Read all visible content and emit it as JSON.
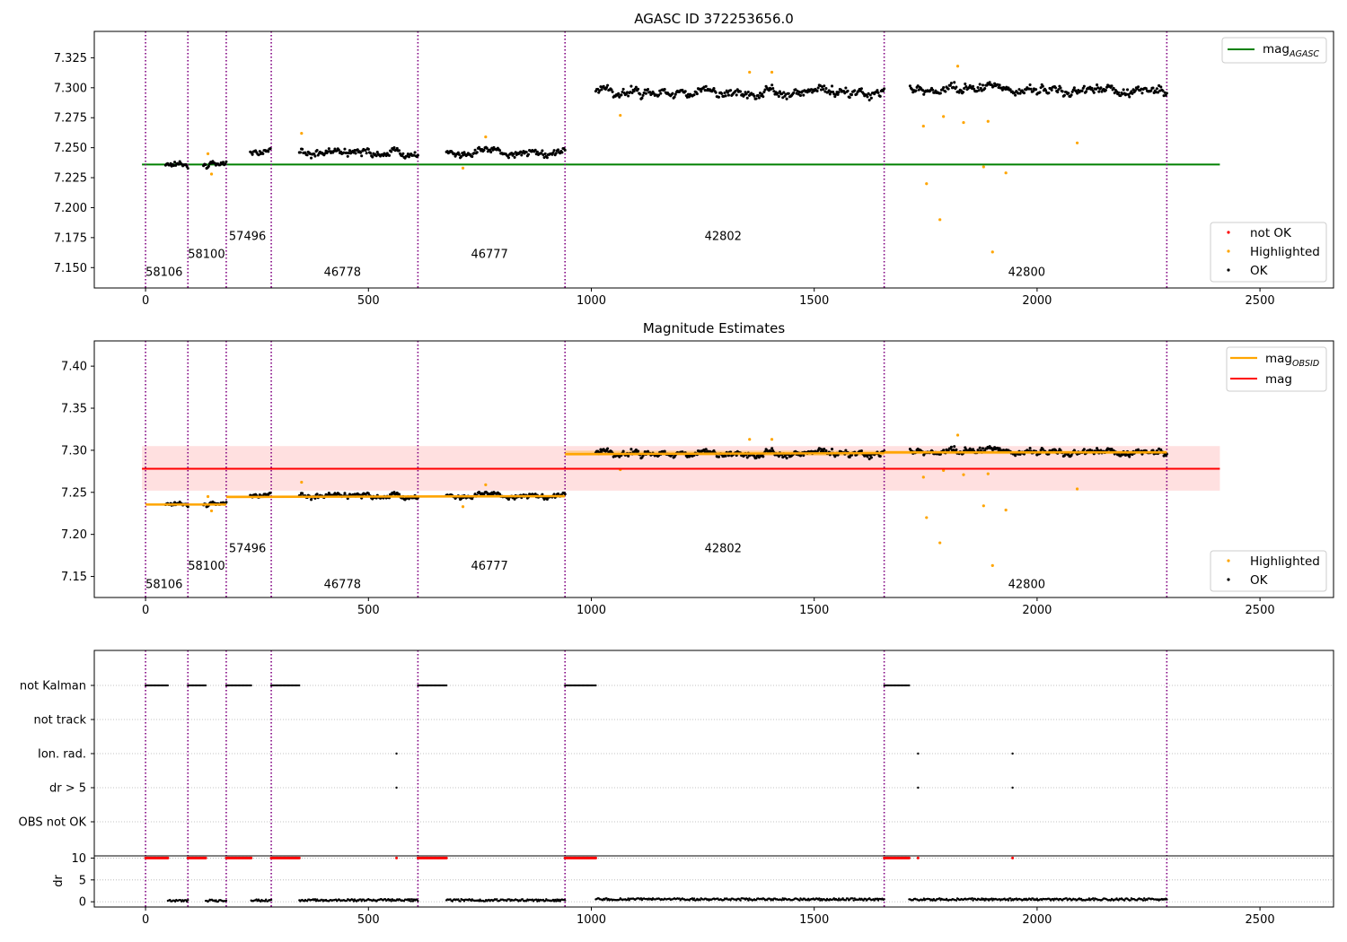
{
  "chart_data": [
    {
      "type": "scatter",
      "title": "AGASC ID 372253656.0",
      "xlim": [
        -115,
        2665
      ],
      "ylim": [
        7.133,
        7.347
      ],
      "xticks": [
        0,
        500,
        1000,
        1500,
        2000,
        2500
      ],
      "yticks": [
        7.15,
        7.175,
        7.2,
        7.225,
        7.25,
        7.275,
        7.3,
        7.325
      ],
      "ytick_labels": [
        "7.150",
        "7.175",
        "7.200",
        "7.225",
        "7.250",
        "7.275",
        "7.300",
        "7.325"
      ],
      "obs_boundaries": [
        0,
        95,
        181,
        282,
        611,
        941,
        1657,
        2291
      ],
      "obs_labels": [
        {
          "text": "58106",
          "x": 0,
          "y": 7.143
        },
        {
          "text": "58100",
          "x": 95,
          "y": 7.158
        },
        {
          "text": "57496",
          "x": 187,
          "y": 7.173
        },
        {
          "text": "46778",
          "x": 400,
          "y": 7.143
        },
        {
          "text": "46777",
          "x": 730,
          "y": 7.158
        },
        {
          "text": "42802",
          "x": 1254,
          "y": 7.173
        },
        {
          "text": "42800",
          "x": 1935,
          "y": 7.143
        }
      ],
      "lines": [
        {
          "name": "mag$_{AGASC}$",
          "x": [
            -8,
            2410
          ],
          "y": [
            7.236,
            7.236
          ],
          "color": "#008000"
        }
      ],
      "segments": [
        {
          "x_start": 45,
          "x_end": 95,
          "level": 7.2355,
          "noise": 0.003
        },
        {
          "x_start": 130,
          "x_end": 181,
          "level": 7.2355,
          "noise": 0.003
        },
        {
          "x_start": 235,
          "x_end": 280,
          "level": 7.245,
          "noise": 0.003
        },
        {
          "x_start": 345,
          "x_end": 611,
          "level": 7.2445,
          "noise": 0.004
        },
        {
          "x_start": 675,
          "x_end": 941,
          "level": 7.2455,
          "noise": 0.004
        },
        {
          "x_start": 1010,
          "x_end": 1657,
          "level": 7.2965,
          "noise": 0.005
        },
        {
          "x_start": 1715,
          "x_end": 2291,
          "level": 7.2975,
          "noise": 0.005
        }
      ],
      "highlighted_points": {
        "x": [
          140,
          148,
          350,
          712,
          763,
          1065,
          1355,
          1405,
          1745,
          1752,
          1782,
          1790,
          1822,
          1835,
          1880,
          1890,
          1900,
          1930,
          2090
        ],
        "y": [
          7.245,
          7.228,
          7.262,
          7.233,
          7.259,
          7.277,
          7.313,
          7.313,
          7.268,
          7.22,
          7.19,
          7.276,
          7.318,
          7.271,
          7.234,
          7.272,
          7.163,
          7.229,
          7.254
        ]
      },
      "legends": [
        {
          "position": "upper right",
          "entries": [
            {
              "label": "mag",
              "subscript": "AGASC",
              "style": "line",
              "color": "#008000"
            }
          ]
        },
        {
          "position": "lower right",
          "entries": [
            {
              "label": "not OK",
              "style": "marker",
              "color": "#ff0000"
            },
            {
              "label": "Highlighted",
              "style": "marker",
              "color": "#ffa500"
            },
            {
              "label": "OK",
              "style": "marker",
              "color": "#000000"
            }
          ]
        }
      ]
    },
    {
      "type": "scatter",
      "title": "Magnitude Estimates",
      "xlim": [
        -115,
        2665
      ],
      "ylim": [
        7.125,
        7.43
      ],
      "xticks": [
        0,
        500,
        1000,
        1500,
        2000,
        2500
      ],
      "yticks": [
        7.15,
        7.2,
        7.25,
        7.3,
        7.35,
        7.4
      ],
      "ytick_labels": [
        "7.15",
        "7.20",
        "7.25",
        "7.30",
        "7.35",
        "7.40"
      ],
      "obs_boundaries": [
        0,
        95,
        181,
        282,
        611,
        941,
        1657,
        2291
      ],
      "obs_labels": [
        {
          "text": "58106",
          "x": 0,
          "y": 7.136
        },
        {
          "text": "58100",
          "x": 95,
          "y": 7.158
        },
        {
          "text": "57496",
          "x": 187,
          "y": 7.179
        },
        {
          "text": "46778",
          "x": 400,
          "y": 7.136
        },
        {
          "text": "46777",
          "x": 730,
          "y": 7.158
        },
        {
          "text": "42802",
          "x": 1254,
          "y": 7.179
        },
        {
          "text": "42800",
          "x": 1935,
          "y": 7.136
        }
      ],
      "mag_line": {
        "value": 7.278,
        "band": [
          7.252,
          7.305
        ],
        "x": [
          -8,
          2410
        ],
        "color": "#ff0000"
      },
      "mag_obsid": [
        {
          "x": [
            0,
            181
          ],
          "y": [
            7.2355,
            7.2355
          ],
          "band": [
            7.2345,
            7.2365
          ]
        },
        {
          "x": [
            181,
            941
          ],
          "y": [
            7.2445,
            7.2455
          ],
          "band": [
            7.2435,
            7.2465
          ]
        },
        {
          "x": [
            941,
            1657
          ],
          "y": [
            7.2955,
            7.2965
          ],
          "band": [
            7.2935,
            7.2995
          ]
        },
        {
          "x": [
            1657,
            2291
          ],
          "y": [
            7.2975,
            7.2975
          ],
          "band": [
            7.2955,
            7.2995
          ]
        }
      ],
      "segments": [
        {
          "x_start": 45,
          "x_end": 95,
          "level": 7.2355,
          "noise": 0.003
        },
        {
          "x_start": 130,
          "x_end": 181,
          "level": 7.2355,
          "noise": 0.003
        },
        {
          "x_start": 235,
          "x_end": 280,
          "level": 7.245,
          "noise": 0.003
        },
        {
          "x_start": 345,
          "x_end": 611,
          "level": 7.2445,
          "noise": 0.004
        },
        {
          "x_start": 675,
          "x_end": 941,
          "level": 7.2455,
          "noise": 0.004
        },
        {
          "x_start": 1010,
          "x_end": 1657,
          "level": 7.2965,
          "noise": 0.005
        },
        {
          "x_start": 1715,
          "x_end": 2291,
          "level": 7.2975,
          "noise": 0.005
        }
      ],
      "highlighted_points": {
        "x": [
          140,
          148,
          350,
          712,
          763,
          1065,
          1355,
          1405,
          1745,
          1752,
          1782,
          1790,
          1822,
          1835,
          1880,
          1890,
          1900,
          1930,
          2090
        ],
        "y": [
          7.245,
          7.228,
          7.262,
          7.233,
          7.259,
          7.277,
          7.313,
          7.313,
          7.268,
          7.22,
          7.19,
          7.276,
          7.318,
          7.271,
          7.234,
          7.272,
          7.163,
          7.229,
          7.254
        ]
      },
      "legends": [
        {
          "position": "upper right",
          "entries": [
            {
              "label": "mag",
              "subscript": "OBSID",
              "style": "line",
              "color": "#ffa500"
            },
            {
              "label": "mag",
              "style": "line",
              "color": "#ff0000"
            }
          ]
        },
        {
          "position": "lower right",
          "entries": [
            {
              "label": "Highlighted",
              "style": "marker",
              "color": "#ffa500"
            },
            {
              "label": "OK",
              "style": "marker",
              "color": "#000000"
            }
          ]
        }
      ]
    },
    {
      "type": "scatter",
      "title": "",
      "xlim": [
        -115,
        2665
      ],
      "xticks": [
        0,
        500,
        1000,
        1500,
        2000,
        2500
      ],
      "flag_rows": [
        "not Kalman",
        "not track",
        "Ion. rad.",
        "dr > 5",
        "OBS not OK"
      ],
      "obs_boundaries": [
        0,
        95,
        181,
        282,
        611,
        941,
        1657,
        2291
      ],
      "flag_spans": [
        {
          "row": "not Kalman",
          "x_start": 0,
          "x_end": 50
        },
        {
          "row": "not Kalman",
          "x_start": 95,
          "x_end": 135
        },
        {
          "row": "not Kalman",
          "x_start": 181,
          "x_end": 237
        },
        {
          "row": "not Kalman",
          "x_start": 282,
          "x_end": 345
        },
        {
          "row": "not Kalman",
          "x_start": 611,
          "x_end": 675
        },
        {
          "row": "not Kalman",
          "x_start": 941,
          "x_end": 1010
        },
        {
          "row": "not Kalman",
          "x_start": 1657,
          "x_end": 1713
        }
      ],
      "flag_points": [
        {
          "row": "Ion. rad.",
          "x": 563
        },
        {
          "row": "Ion. rad.",
          "x": 1733
        },
        {
          "row": "Ion. rad.",
          "x": 1945
        },
        {
          "row": "dr > 5",
          "x": 563
        },
        {
          "row": "dr > 5",
          "x": 1733
        },
        {
          "row": "dr > 5",
          "x": 1945
        }
      ],
      "dr_panel": {
        "ylabel": "dr",
        "ylim": [
          -1.2,
          10.5
        ],
        "yticks": [
          0,
          5,
          10
        ],
        "ytick_labels": [
          "0",
          "5",
          "10"
        ],
        "clipped_markers": [
          {
            "x_start": 0,
            "x_end": 50
          },
          {
            "x_start": 95,
            "x_end": 135
          },
          {
            "x_start": 181,
            "x_end": 237
          },
          {
            "x_start": 282,
            "x_end": 345
          },
          {
            "x_start": 611,
            "x_end": 675
          },
          {
            "x_start": 941,
            "x_end": 1010
          },
          {
            "x_start": 1657,
            "x_end": 1713
          },
          {
            "x_start": 563,
            "x_end": 563
          },
          {
            "x_start": 1733,
            "x_end": 1733
          },
          {
            "x_start": 1945,
            "x_end": 1945
          }
        ],
        "dr_segments": [
          {
            "x_start": 50,
            "x_end": 95,
            "level": 0.25
          },
          {
            "x_start": 135,
            "x_end": 181,
            "level": 0.25
          },
          {
            "x_start": 237,
            "x_end": 282,
            "level": 0.3
          },
          {
            "x_start": 345,
            "x_end": 611,
            "level": 0.35
          },
          {
            "x_start": 675,
            "x_end": 941,
            "level": 0.35
          },
          {
            "x_start": 1010,
            "x_end": 1657,
            "level": 0.55
          },
          {
            "x_start": 1713,
            "x_end": 2291,
            "level": 0.55
          }
        ]
      }
    }
  ]
}
